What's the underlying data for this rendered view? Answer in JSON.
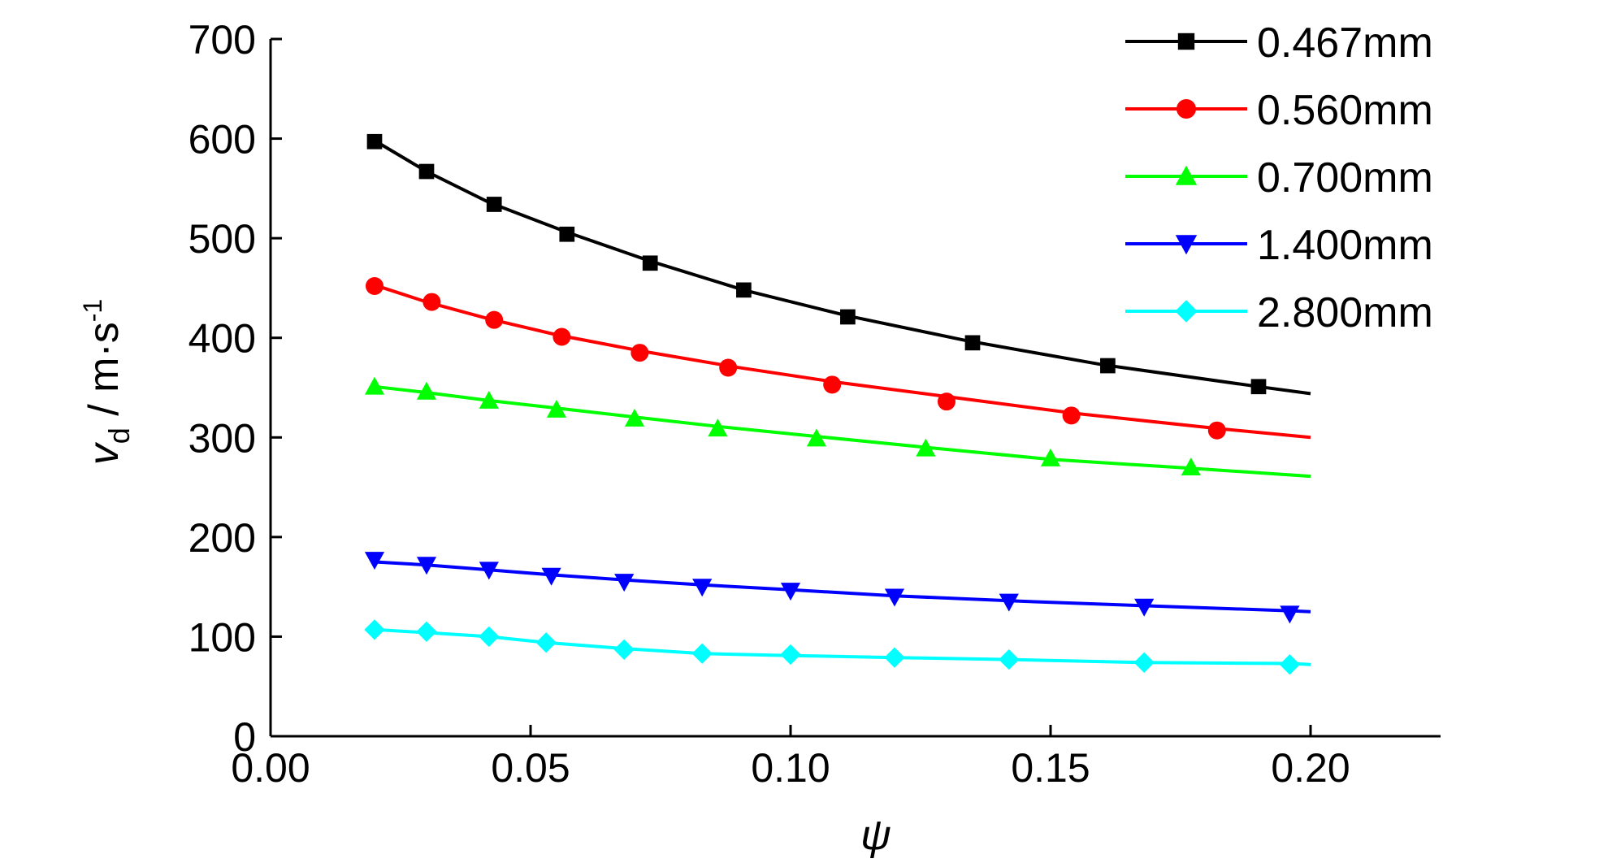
{
  "chart_data": {
    "type": "line",
    "xlabel": "ψ",
    "ylabel": {
      "main": "v",
      "sub": "d",
      "unit": " / m·s",
      "sup": "-1"
    },
    "xlim": [
      0,
      0.225
    ],
    "ylim": [
      0,
      700
    ],
    "x_ticks": [
      "0.00",
      "0.05",
      "0.10",
      "0.15",
      "0.20"
    ],
    "y_ticks": [
      "0",
      "100",
      "200",
      "300",
      "400",
      "500",
      "600",
      "700"
    ],
    "grid": false,
    "legend_position": "top-right",
    "series": [
      {
        "name": "0.467mm",
        "color": "#000000",
        "marker": "square",
        "fit": [
          [
            0.02,
            598
          ],
          [
            0.03,
            567
          ],
          [
            0.042,
            536
          ],
          [
            0.057,
            506
          ],
          [
            0.073,
            477
          ],
          [
            0.091,
            448
          ],
          [
            0.111,
            422
          ],
          [
            0.134,
            397
          ],
          [
            0.16,
            373
          ],
          [
            0.19,
            351
          ],
          [
            0.2,
            344
          ]
        ],
        "points": [
          [
            0.02,
            597
          ],
          [
            0.03,
            567
          ],
          [
            0.043,
            534
          ],
          [
            0.057,
            504
          ],
          [
            0.073,
            475
          ],
          [
            0.091,
            448
          ],
          [
            0.111,
            421
          ],
          [
            0.135,
            395
          ],
          [
            0.161,
            372
          ],
          [
            0.19,
            351
          ]
        ]
      },
      {
        "name": "0.560mm",
        "color": "#ff0000",
        "marker": "circle",
        "fit": [
          [
            0.02,
            453
          ],
          [
            0.03,
            436
          ],
          [
            0.042,
            419
          ],
          [
            0.055,
            403
          ],
          [
            0.071,
            387
          ],
          [
            0.089,
            371
          ],
          [
            0.108,
            356
          ],
          [
            0.13,
            341
          ],
          [
            0.155,
            324
          ],
          [
            0.182,
            309
          ],
          [
            0.2,
            300
          ]
        ],
        "points": [
          [
            0.02,
            452
          ],
          [
            0.031,
            436
          ],
          [
            0.043,
            418
          ],
          [
            0.056,
            401
          ],
          [
            0.071,
            385
          ],
          [
            0.088,
            370
          ],
          [
            0.108,
            353
          ],
          [
            0.13,
            336
          ],
          [
            0.154,
            322
          ],
          [
            0.182,
            307
          ]
        ]
      },
      {
        "name": "0.700mm",
        "color": "#00ff00",
        "marker": "triangle-up",
        "fit": [
          [
            0.02,
            351
          ],
          [
            0.03,
            345
          ],
          [
            0.042,
            337
          ],
          [
            0.054,
            330
          ],
          [
            0.069,
            321
          ],
          [
            0.086,
            311
          ],
          [
            0.105,
            301
          ],
          [
            0.126,
            290
          ],
          [
            0.15,
            278
          ],
          [
            0.177,
            269
          ],
          [
            0.2,
            261
          ]
        ],
        "points": [
          [
            0.02,
            351
          ],
          [
            0.03,
            346
          ],
          [
            0.042,
            337
          ],
          [
            0.055,
            328
          ],
          [
            0.07,
            319
          ],
          [
            0.086,
            309
          ],
          [
            0.105,
            299
          ],
          [
            0.126,
            289
          ],
          [
            0.15,
            279
          ],
          [
            0.177,
            270
          ]
        ]
      },
      {
        "name": "1.400mm",
        "color": "#0000ff",
        "marker": "triangle-down",
        "fit": [
          [
            0.02,
            175
          ],
          [
            0.03,
            172
          ],
          [
            0.042,
            167
          ],
          [
            0.054,
            162
          ],
          [
            0.068,
            157
          ],
          [
            0.083,
            152
          ],
          [
            0.1,
            147
          ],
          [
            0.12,
            141
          ],
          [
            0.142,
            136
          ],
          [
            0.168,
            131
          ],
          [
            0.196,
            126
          ],
          [
            0.2,
            125
          ]
        ],
        "points": [
          [
            0.02,
            177
          ],
          [
            0.03,
            172
          ],
          [
            0.042,
            167
          ],
          [
            0.054,
            161
          ],
          [
            0.068,
            155
          ],
          [
            0.083,
            150
          ],
          [
            0.1,
            146
          ],
          [
            0.12,
            140
          ],
          [
            0.142,
            135
          ],
          [
            0.168,
            130
          ],
          [
            0.196,
            123
          ]
        ]
      },
      {
        "name": "2.800mm",
        "color": "#00ffff",
        "marker": "diamond",
        "fit": [
          [
            0.02,
            107
          ],
          [
            0.03,
            104
          ],
          [
            0.042,
            100
          ],
          [
            0.053,
            94
          ],
          [
            0.068,
            88
          ],
          [
            0.083,
            83
          ],
          [
            0.1,
            81
          ],
          [
            0.12,
            79
          ],
          [
            0.142,
            77
          ],
          [
            0.168,
            74
          ],
          [
            0.196,
            73
          ],
          [
            0.2,
            72
          ]
        ],
        "points": [
          [
            0.02,
            107
          ],
          [
            0.03,
            105
          ],
          [
            0.042,
            100
          ],
          [
            0.053,
            94
          ],
          [
            0.068,
            87
          ],
          [
            0.083,
            83
          ],
          [
            0.1,
            82
          ],
          [
            0.12,
            79
          ],
          [
            0.142,
            77
          ],
          [
            0.168,
            74
          ],
          [
            0.196,
            72
          ]
        ]
      }
    ]
  }
}
